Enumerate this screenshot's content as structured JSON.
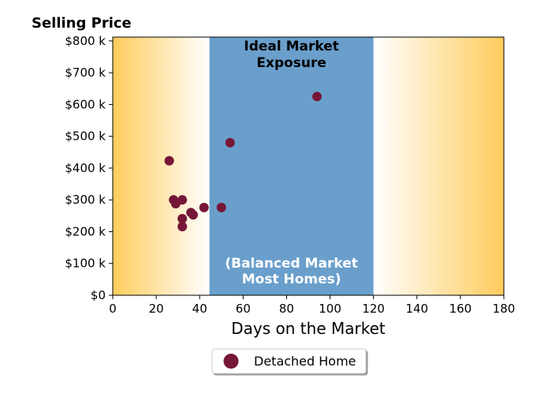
{
  "chart_data": {
    "type": "scatter",
    "title": "",
    "ylabel": "Selling Price",
    "xlabel": "Days on the Market",
    "xlim": [
      0,
      180
    ],
    "ylim": [
      0,
      812
    ],
    "xticks": [
      0,
      20,
      40,
      60,
      80,
      100,
      120,
      140,
      160,
      180
    ],
    "yticks": [
      0,
      100,
      200,
      300,
      400,
      500,
      600,
      700,
      800
    ],
    "ytick_labels": [
      "$0",
      "$100 k",
      "$200 k",
      "$300 k",
      "$400 k",
      "$500 k",
      "$600 k",
      "$700 k",
      "$800 k"
    ],
    "grid": false,
    "legend_position": "bottom-center",
    "zones": {
      "ideal_band": [
        44.5,
        120
      ],
      "ideal_title_lines": [
        "Ideal Market",
        "Exposure"
      ],
      "ideal_sub_lines": [
        "(Balanced Market",
        "Most Homes)"
      ]
    },
    "colors": {
      "marker": "#761737",
      "ideal_band": "#6a9fcc",
      "gradient_edge": "#ffcc5c",
      "gradient_center": "#ffffff"
    },
    "series": [
      {
        "name": "Detached Home",
        "points": [
          {
            "x": 26,
            "y": 423
          },
          {
            "x": 28,
            "y": 300
          },
          {
            "x": 29,
            "y": 288
          },
          {
            "x": 32,
            "y": 300
          },
          {
            "x": 32,
            "y": 241
          },
          {
            "x": 32,
            "y": 216
          },
          {
            "x": 36,
            "y": 260
          },
          {
            "x": 37,
            "y": 253
          },
          {
            "x": 42,
            "y": 276
          },
          {
            "x": 50,
            "y": 276
          },
          {
            "x": 54,
            "y": 480
          },
          {
            "x": 94,
            "y": 625
          }
        ]
      }
    ]
  }
}
